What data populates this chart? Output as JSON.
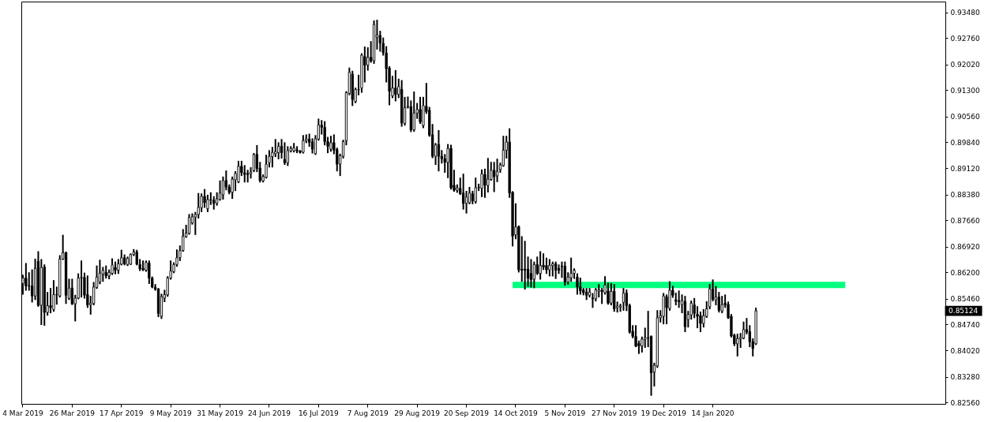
{
  "chart_data": {
    "type": "candlestick",
    "color": "#000000",
    "categories": [
      "4 Mar 2019",
      null,
      null,
      null,
      null,
      null,
      null,
      null,
      null,
      null,
      null,
      null,
      null,
      null,
      null,
      null,
      "26 Mar 2019",
      null,
      null,
      null,
      null,
      null,
      null,
      null,
      null,
      null,
      null,
      null,
      null,
      null,
      null,
      null,
      "17 Apr 2019",
      null,
      null,
      null,
      null,
      null,
      null,
      null,
      null,
      null,
      null,
      null,
      null,
      null,
      null,
      null,
      "9 May 2019",
      null,
      null,
      null,
      null,
      null,
      null,
      null,
      null,
      null,
      null,
      null,
      null,
      null,
      null,
      null,
      "31 May 2019",
      null,
      null,
      null,
      null,
      null,
      null,
      null,
      null,
      null,
      null,
      null,
      null,
      null,
      null,
      null,
      "24 Jun 2019",
      null,
      null,
      null,
      null,
      null,
      null,
      null,
      null,
      null,
      null,
      null,
      null,
      null,
      null,
      null,
      "16 Jul 2019",
      null,
      null,
      null,
      null,
      null,
      null,
      null,
      null,
      null,
      null,
      null,
      null,
      null,
      null,
      null,
      "7 Aug 2019",
      null,
      null,
      null,
      null,
      null,
      null,
      null,
      null,
      null,
      null,
      null,
      null,
      null,
      null,
      null,
      "29 Aug 2019",
      null,
      null,
      null,
      null,
      null,
      null,
      null,
      null,
      null,
      null,
      null,
      null,
      null,
      null,
      null,
      "20 Sep 2019",
      null,
      null,
      null,
      null,
      null,
      null,
      null,
      null,
      null,
      null,
      null,
      null,
      null,
      null,
      null,
      "14 Oct 2019",
      null,
      null,
      null,
      null,
      null,
      null,
      null,
      null,
      null,
      null,
      null,
      null,
      null,
      null,
      null,
      "5 Nov 2019",
      null,
      null,
      null,
      null,
      null,
      null,
      null,
      null,
      null,
      null,
      null,
      null,
      null,
      null,
      null,
      "27 Nov 2019",
      null,
      null,
      null,
      null,
      null,
      null,
      null,
      null,
      null,
      null,
      null,
      null,
      null,
      null,
      null,
      "19 Dec 2019",
      null,
      null,
      null,
      null,
      null,
      null,
      null,
      null,
      null,
      null,
      null,
      null,
      null,
      null,
      null,
      "14 Jan 2020",
      null,
      null,
      null,
      null,
      null,
      null,
      null,
      null,
      null,
      null,
      null,
      null,
      null,
      null,
      null,
      null,
      null,
      null,
      null,
      null,
      null,
      null,
      null,
      null,
      null,
      null,
      null,
      null,
      null,
      null,
      null,
      null,
      null,
      null,
      null,
      null,
      null,
      null,
      null,
      null,
      null,
      null,
      null,
      null,
      null,
      null,
      null,
      null,
      null,
      null,
      null,
      null,
      null,
      null,
      null,
      null,
      null,
      null,
      null,
      null,
      null,
      null,
      null,
      null,
      null,
      null,
      null,
      null,
      null,
      null,
      null,
      null,
      null,
      null,
      null
    ],
    "ohlc": [
      [
        0.8589,
        0.8611,
        0.856,
        0.8604
      ],
      [
        0.8604,
        0.8644,
        0.8571,
        0.8582
      ],
      [
        0.8583,
        0.8618,
        0.8571,
        0.8582
      ],
      [
        0.8582,
        0.8626,
        0.8538,
        0.8554
      ],
      [
        0.8554,
        0.8656,
        0.8545,
        0.8631
      ],
      [
        0.8651,
        0.8677,
        0.8526,
        0.8528
      ],
      [
        0.8528,
        0.8655,
        0.8475,
        0.8634
      ],
      [
        0.8635,
        0.864,
        0.8473,
        0.8508
      ],
      [
        0.8508,
        0.8563,
        0.8501,
        0.8527
      ],
      [
        0.8527,
        0.8574,
        0.8508,
        0.8521
      ],
      [
        0.8516,
        0.8596,
        0.8512,
        0.8558
      ],
      [
        0.8557,
        0.8578,
        0.8532,
        0.8558
      ],
      [
        0.8554,
        0.8666,
        0.8552,
        0.8657
      ],
      [
        0.8657,
        0.8723,
        0.8657,
        0.8675
      ],
      [
        0.8675,
        0.8676,
        0.8534,
        0.8556
      ],
      [
        0.8547,
        0.86,
        0.8545,
        0.8576
      ],
      [
        0.8576,
        0.86,
        0.8531,
        0.8532
      ],
      [
        0.8532,
        0.8555,
        0.8485,
        0.8548
      ],
      [
        0.8548,
        0.8615,
        0.8547,
        0.8604
      ],
      [
        0.8604,
        0.8651,
        0.8552,
        0.8606
      ],
      [
        0.8606,
        0.8617,
        0.8549,
        0.8556
      ],
      [
        0.8558,
        0.8609,
        0.8523,
        0.8529
      ],
      [
        0.8529,
        0.8552,
        0.8504,
        0.8534
      ],
      [
        0.8533,
        0.8591,
        0.853,
        0.8579
      ],
      [
        0.8578,
        0.8637,
        0.8576,
        0.8607
      ],
      [
        0.8593,
        0.8653,
        0.8589,
        0.8618
      ],
      [
        0.8615,
        0.8633,
        0.8596,
        0.8626
      ],
      [
        0.862,
        0.8637,
        0.8605,
        0.861
      ],
      [
        0.861,
        0.8626,
        0.8603,
        0.862
      ],
      [
        0.8617,
        0.8657,
        0.8615,
        0.8641
      ],
      [
        0.8634,
        0.8648,
        0.8617,
        0.8626
      ],
      [
        0.8626,
        0.8655,
        0.8618,
        0.8644
      ],
      [
        0.8643,
        0.8681,
        0.8642,
        0.8661
      ],
      [
        0.8661,
        0.8668,
        0.8642,
        0.8644
      ],
      [
        0.8642,
        0.8662,
        0.864,
        0.8659
      ],
      [
        0.8643,
        0.8671,
        0.8643,
        0.867
      ],
      [
        0.867,
        0.8683,
        0.8668,
        0.8677
      ],
      [
        0.8677,
        0.8681,
        0.8642,
        0.8643
      ],
      [
        0.8642,
        0.8655,
        0.8626,
        0.863
      ],
      [
        0.8631,
        0.8651,
        0.8626,
        0.8627
      ],
      [
        0.8626,
        0.8651,
        0.8624,
        0.8648
      ],
      [
        0.8646,
        0.8651,
        0.859,
        0.8604
      ],
      [
        0.8604,
        0.8606,
        0.8578,
        0.8579
      ],
      [
        0.8578,
        0.8585,
        0.8571,
        0.8573
      ],
      [
        0.8573,
        0.8574,
        0.8497,
        0.8505
      ],
      [
        0.8497,
        0.8558,
        0.8492,
        0.8552
      ],
      [
        0.8548,
        0.8569,
        0.8539,
        0.8558
      ],
      [
        0.8557,
        0.8607,
        0.8554,
        0.8604
      ],
      [
        0.8604,
        0.8651,
        0.8602,
        0.8624
      ],
      [
        0.8622,
        0.8646,
        0.862,
        0.8642
      ],
      [
        0.8642,
        0.8682,
        0.8638,
        0.8661
      ],
      [
        0.8661,
        0.8693,
        0.8654,
        0.8681
      ],
      [
        0.8681,
        0.8739,
        0.868,
        0.8721
      ],
      [
        0.872,
        0.8751,
        0.8719,
        0.873
      ],
      [
        0.8729,
        0.8781,
        0.8728,
        0.8774
      ],
      [
        0.8758,
        0.8783,
        0.8756,
        0.8776
      ],
      [
        0.8775,
        0.8787,
        0.8727,
        0.8782
      ],
      [
        0.8782,
        0.884,
        0.8773,
        0.8802
      ],
      [
        0.8801,
        0.8839,
        0.8791,
        0.8833
      ],
      [
        0.8833,
        0.8851,
        0.8803,
        0.8815
      ],
      [
        0.8798,
        0.8835,
        0.8791,
        0.8824
      ],
      [
        0.8822,
        0.8842,
        0.8811,
        0.8824
      ],
      [
        0.8822,
        0.8831,
        0.8798,
        0.8813
      ],
      [
        0.8813,
        0.8842,
        0.8809,
        0.8826
      ],
      [
        0.8824,
        0.8875,
        0.8823,
        0.8842
      ],
      [
        0.8837,
        0.8886,
        0.8826,
        0.8877
      ],
      [
        0.8877,
        0.8903,
        0.8852,
        0.8859
      ],
      [
        0.8859,
        0.8864,
        0.8841,
        0.8844
      ],
      [
        0.8844,
        0.8886,
        0.8828,
        0.8881
      ],
      [
        0.8879,
        0.8901,
        0.885,
        0.8897
      ],
      [
        0.8873,
        0.893,
        0.8872,
        0.8917
      ],
      [
        0.8917,
        0.893,
        0.8892,
        0.8899
      ],
      [
        0.8899,
        0.8918,
        0.8874,
        0.8894
      ],
      [
        0.8897,
        0.8905,
        0.8874,
        0.8894
      ],
      [
        0.8896,
        0.8912,
        0.8885,
        0.8901
      ],
      [
        0.8905,
        0.8952,
        0.8903,
        0.895
      ],
      [
        0.895,
        0.8974,
        0.8903,
        0.8911
      ],
      [
        0.8912,
        0.8927,
        0.8874,
        0.8877
      ],
      [
        0.8876,
        0.8892,
        0.8874,
        0.8888
      ],
      [
        0.8886,
        0.8947,
        0.8885,
        0.8923
      ],
      [
        0.8927,
        0.896,
        0.8916,
        0.8945
      ],
      [
        0.8944,
        0.8969,
        0.8916,
        0.8956
      ],
      [
        0.8952,
        0.8991,
        0.8945,
        0.8958
      ],
      [
        0.8955,
        0.8982,
        0.8939,
        0.8973
      ],
      [
        0.8973,
        0.8991,
        0.8941,
        0.8955
      ],
      [
        0.8936,
        0.8982,
        0.8923,
        0.8927
      ],
      [
        0.8927,
        0.8971,
        0.892,
        0.8961
      ],
      [
        0.896,
        0.8971,
        0.8958,
        0.8967
      ],
      [
        0.896,
        0.898,
        0.8958,
        0.8969
      ],
      [
        0.8963,
        0.8971,
        0.8956,
        0.896
      ],
      [
        0.896,
        0.896,
        0.8955,
        0.8956
      ],
      [
        0.8956,
        0.9002,
        0.8955,
        0.8989
      ],
      [
        0.8989,
        0.9004,
        0.8984,
        0.8994
      ],
      [
        0.8993,
        0.9006,
        0.8974,
        0.8984
      ],
      [
        0.8985,
        0.8993,
        0.8955,
        0.8965
      ],
      [
        0.8952,
        0.9002,
        0.8951,
        0.8994
      ],
      [
        0.8993,
        0.9048,
        0.8991,
        0.9033
      ],
      [
        0.9032,
        0.9044,
        0.9008,
        0.9026
      ],
      [
        0.9026,
        0.9041,
        0.8978,
        0.8986
      ],
      [
        0.8986,
        0.8997,
        0.8956,
        0.8973
      ],
      [
        0.8965,
        0.9,
        0.896,
        0.8983
      ],
      [
        0.8983,
        0.9004,
        0.8953,
        0.8962
      ],
      [
        0.8964,
        0.8967,
        0.8905,
        0.8923
      ],
      [
        0.8923,
        0.895,
        0.8892,
        0.8947
      ],
      [
        0.8945,
        0.8989,
        0.8941,
        0.8986
      ],
      [
        0.8989,
        0.9125,
        0.8978,
        0.9123
      ],
      [
        0.9121,
        0.9191,
        0.9118,
        0.918
      ],
      [
        0.9175,
        0.9182,
        0.9088,
        0.9104
      ],
      [
        0.9098,
        0.9135,
        0.9096,
        0.9132
      ],
      [
        0.9131,
        0.9171,
        0.9118,
        0.9132
      ],
      [
        0.9136,
        0.9231,
        0.9125,
        0.9228
      ],
      [
        0.9224,
        0.925,
        0.9154,
        0.92
      ],
      [
        0.92,
        0.9248,
        0.9187,
        0.9222
      ],
      [
        0.9222,
        0.9265,
        0.9209,
        0.9212
      ],
      [
        0.9212,
        0.9323,
        0.9206,
        0.9314
      ],
      [
        0.9278,
        0.9325,
        0.9246,
        0.9285
      ],
      [
        0.9283,
        0.9294,
        0.924,
        0.9262
      ],
      [
        0.9261,
        0.9275,
        0.9229,
        0.9235
      ],
      [
        0.9234,
        0.9251,
        0.9154,
        0.919
      ],
      [
        0.9192,
        0.9195,
        0.909,
        0.9127
      ],
      [
        0.9114,
        0.9168,
        0.911,
        0.9136
      ],
      [
        0.9136,
        0.9184,
        0.9101,
        0.9118
      ],
      [
        0.9118,
        0.916,
        0.911,
        0.914
      ],
      [
        0.9132,
        0.9156,
        0.903,
        0.9038
      ],
      [
        0.9037,
        0.9109,
        0.9033,
        0.9081
      ],
      [
        0.9083,
        0.911,
        0.9081,
        0.9084
      ],
      [
        0.9084,
        0.9099,
        0.9015,
        0.9019
      ],
      [
        0.9019,
        0.9124,
        0.9016,
        0.9066
      ],
      [
        0.9066,
        0.9092,
        0.9052,
        0.9076
      ],
      [
        0.9076,
        0.9109,
        0.9038,
        0.9041
      ],
      [
        0.9031,
        0.9109,
        0.9026,
        0.9087
      ],
      [
        0.9085,
        0.9148,
        0.9066,
        0.907
      ],
      [
        0.9074,
        0.9081,
        0.9002,
        0.9004
      ],
      [
        0.9005,
        0.9033,
        0.8942,
        0.8945
      ],
      [
        0.8945,
        0.898,
        0.8923,
        0.8977
      ],
      [
        0.8978,
        0.9016,
        0.8905,
        0.8945
      ],
      [
        0.8945,
        0.896,
        0.8927,
        0.8938
      ],
      [
        0.8938,
        0.8949,
        0.8901,
        0.8928
      ],
      [
        0.8928,
        0.8977,
        0.8886,
        0.8967
      ],
      [
        0.8967,
        0.8975,
        0.8854,
        0.8857
      ],
      [
        0.8864,
        0.8905,
        0.8848,
        0.885
      ],
      [
        0.885,
        0.8864,
        0.8845,
        0.8857
      ],
      [
        0.8855,
        0.8883,
        0.8839,
        0.884
      ],
      [
        0.8842,
        0.8894,
        0.8798,
        0.8813
      ],
      [
        0.8813,
        0.8846,
        0.8787,
        0.8831
      ],
      [
        0.8815,
        0.8857,
        0.8813,
        0.8842
      ],
      [
        0.884,
        0.8846,
        0.8813,
        0.882
      ],
      [
        0.8818,
        0.8883,
        0.8815,
        0.8857
      ],
      [
        0.8857,
        0.8866,
        0.885,
        0.8858
      ],
      [
        0.8855,
        0.8906,
        0.8833,
        0.8896
      ],
      [
        0.8894,
        0.8908,
        0.8831,
        0.8864
      ],
      [
        0.8863,
        0.8938,
        0.8846,
        0.8881
      ],
      [
        0.888,
        0.8927,
        0.8879,
        0.8906
      ],
      [
        0.8906,
        0.8927,
        0.8847,
        0.8888
      ],
      [
        0.889,
        0.8936,
        0.8875,
        0.8903
      ],
      [
        0.8908,
        0.8925,
        0.8901,
        0.8921
      ],
      [
        0.8919,
        0.9,
        0.8918,
        0.8962
      ],
      [
        0.8962,
        0.9,
        0.8941,
        0.8985
      ],
      [
        0.8985,
        0.9021,
        0.8831,
        0.8842
      ],
      [
        0.8844,
        0.8845,
        0.8695,
        0.8721
      ],
      [
        0.8725,
        0.8811,
        0.8715,
        0.8747
      ],
      [
        0.8748,
        0.8749,
        0.8622,
        0.8627
      ],
      [
        0.8629,
        0.8719,
        0.8596,
        0.8626
      ],
      [
        0.8629,
        0.8706,
        0.8574,
        0.8626
      ],
      [
        0.8629,
        0.8662,
        0.8582,
        0.8604
      ],
      [
        0.8617,
        0.8655,
        0.858,
        0.86
      ],
      [
        0.8601,
        0.8648,
        0.8578,
        0.8642
      ],
      [
        0.8642,
        0.8662,
        0.8615,
        0.8617
      ],
      [
        0.8617,
        0.8677,
        0.8602,
        0.8639
      ],
      [
        0.864,
        0.8671,
        0.8629,
        0.8635
      ],
      [
        0.8639,
        0.8659,
        0.8618,
        0.8627
      ],
      [
        0.8627,
        0.8655,
        0.8611,
        0.864
      ],
      [
        0.8639,
        0.8648,
        0.8611,
        0.8644
      ],
      [
        0.8644,
        0.8648,
        0.8604,
        0.8626
      ],
      [
        0.8631,
        0.864,
        0.8618,
        0.8626
      ],
      [
        0.8637,
        0.8648,
        0.8607,
        0.8636
      ],
      [
        0.8637,
        0.8648,
        0.8585,
        0.8593
      ],
      [
        0.8593,
        0.8618,
        0.8588,
        0.8607
      ],
      [
        0.8605,
        0.8659,
        0.8596,
        0.8617
      ],
      [
        0.8617,
        0.8629,
        0.8604,
        0.8626
      ],
      [
        0.8607,
        0.8615,
        0.856,
        0.8579
      ],
      [
        0.858,
        0.8603,
        0.856,
        0.8568
      ],
      [
        0.8571,
        0.8574,
        0.8558,
        0.8563
      ],
      [
        0.8565,
        0.8574,
        0.8545,
        0.8556
      ],
      [
        0.8556,
        0.8574,
        0.8552,
        0.8565
      ],
      [
        0.8548,
        0.856,
        0.8523,
        0.8546
      ],
      [
        0.8546,
        0.8574,
        0.8541,
        0.8571
      ],
      [
        0.8567,
        0.8585,
        0.8552,
        0.8571
      ],
      [
        0.857,
        0.8574,
        0.8534,
        0.8566
      ],
      [
        0.8563,
        0.8607,
        0.856,
        0.8585
      ],
      [
        0.8568,
        0.8589,
        0.8532,
        0.8534
      ],
      [
        0.8534,
        0.8588,
        0.853,
        0.8567
      ],
      [
        0.8567,
        0.8585,
        0.8512,
        0.8518
      ],
      [
        0.8521,
        0.8536,
        0.851,
        0.8526
      ],
      [
        0.8523,
        0.853,
        0.8512,
        0.8526
      ],
      [
        0.8536,
        0.8574,
        0.8515,
        0.8562
      ],
      [
        0.8562,
        0.857,
        0.8514,
        0.8527
      ],
      [
        0.8527,
        0.853,
        0.8451,
        0.8453
      ],
      [
        0.8455,
        0.847,
        0.8438,
        0.8441
      ],
      [
        0.8441,
        0.847,
        0.8413,
        0.8414
      ],
      [
        0.8421,
        0.8427,
        0.8394,
        0.8414
      ],
      [
        0.8414,
        0.8438,
        0.8398,
        0.8433
      ],
      [
        0.8432,
        0.8463,
        0.8411,
        0.8437
      ],
      [
        0.8437,
        0.851,
        0.8413,
        0.8436
      ],
      [
        0.8441,
        0.8441,
        0.8277,
        0.8339
      ],
      [
        0.8341,
        0.8365,
        0.8303,
        0.836
      ],
      [
        0.8358,
        0.8512,
        0.8355,
        0.8493
      ],
      [
        0.8493,
        0.8512,
        0.8482,
        0.8499
      ],
      [
        0.8497,
        0.856,
        0.8477,
        0.8554
      ],
      [
        0.8552,
        0.8556,
        0.8477,
        0.8521
      ],
      [
        0.8519,
        0.8593,
        0.8515,
        0.857
      ],
      [
        0.857,
        0.858,
        0.8551,
        0.8556
      ],
      [
        0.8543,
        0.8561,
        0.853,
        0.8539
      ],
      [
        0.8541,
        0.8567,
        0.8523,
        0.8538
      ],
      [
        0.853,
        0.8556,
        0.8508,
        0.8541
      ],
      [
        0.8539,
        0.8552,
        0.8455,
        0.8468
      ],
      [
        0.8488,
        0.851,
        0.8468,
        0.8502
      ],
      [
        0.8501,
        0.8539,
        0.849,
        0.8534
      ],
      [
        0.8529,
        0.8546,
        0.8494,
        0.8505
      ],
      [
        0.8503,
        0.8523,
        0.8466,
        0.8497
      ],
      [
        0.8499,
        0.8508,
        0.8455,
        0.8477
      ],
      [
        0.8477,
        0.8515,
        0.8468,
        0.8499
      ],
      [
        0.8497,
        0.8537,
        0.8495,
        0.8518
      ],
      [
        0.8524,
        0.8585,
        0.8519,
        0.8574
      ],
      [
        0.8574,
        0.8598,
        0.8541,
        0.8545
      ],
      [
        0.8543,
        0.858,
        0.853,
        0.8551
      ],
      [
        0.8551,
        0.8563,
        0.851,
        0.8514
      ],
      [
        0.8512,
        0.8552,
        0.8508,
        0.853
      ],
      [
        0.8534,
        0.8556,
        0.8523,
        0.8529
      ],
      [
        0.853,
        0.8536,
        0.8492,
        0.8493
      ],
      [
        0.8497,
        0.8501,
        0.844,
        0.8442
      ],
      [
        0.8444,
        0.8446,
        0.8416,
        0.842
      ],
      [
        0.842,
        0.8446,
        0.8387,
        0.8435
      ],
      [
        0.8434,
        0.8448,
        0.8411,
        0.8438
      ],
      [
        0.8436,
        0.848,
        0.8435,
        0.846
      ],
      [
        0.846,
        0.849,
        0.8449,
        0.8453
      ],
      [
        0.8454,
        0.847,
        0.8413,
        0.8426
      ],
      [
        0.8426,
        0.8433,
        0.8387,
        0.8407
      ],
      [
        0.842,
        0.8519,
        0.8419,
        0.85124
      ],
      null,
      null,
      null,
      null,
      null,
      null,
      null,
      null,
      null,
      null,
      null,
      null,
      null,
      null,
      null,
      null,
      null,
      null,
      null,
      null,
      null,
      null,
      null,
      null,
      null,
      null,
      null,
      null,
      null,
      null,
      null,
      null,
      null,
      null,
      null,
      null,
      null,
      null,
      null,
      null,
      null,
      null,
      null,
      null,
      null,
      null,
      null,
      null,
      null,
      null,
      null,
      null,
      null,
      null,
      null,
      null,
      null,
      null,
      null,
      null,
      null
    ],
    "series": [
      {
        "type": "line",
        "color": "#00ff7f",
        "values": [
          null,
          null,
          null,
          null,
          null,
          null,
          null,
          null,
          null,
          null,
          null,
          null,
          null,
          null,
          null,
          null,
          null,
          null,
          null,
          null,
          null,
          null,
          null,
          null,
          null,
          null,
          null,
          null,
          null,
          null,
          null,
          null,
          null,
          null,
          null,
          null,
          null,
          null,
          null,
          null,
          null,
          null,
          null,
          null,
          null,
          null,
          null,
          null,
          null,
          null,
          null,
          null,
          null,
          null,
          null,
          null,
          null,
          null,
          null,
          null,
          null,
          null,
          null,
          null,
          null,
          null,
          null,
          null,
          null,
          null,
          null,
          null,
          null,
          null,
          null,
          null,
          null,
          null,
          null,
          null,
          null,
          null,
          null,
          null,
          null,
          null,
          null,
          null,
          null,
          null,
          null,
          null,
          null,
          null,
          null,
          null,
          null,
          null,
          null,
          null,
          null,
          null,
          null,
          null,
          null,
          null,
          null,
          null,
          null,
          null,
          null,
          null,
          null,
          null,
          null,
          null,
          null,
          null,
          null,
          null,
          null,
          null,
          null,
          null,
          null,
          null,
          null,
          null,
          null,
          null,
          null,
          null,
          null,
          null,
          null,
          null,
          null,
          null,
          null,
          null,
          null,
          null,
          null,
          null,
          null,
          null,
          null,
          null,
          null,
          null,
          null,
          null,
          null,
          null,
          null,
          null,
          null,
          null,
          null,
          0.8585,
          0.8585,
          0.8585,
          0.8585,
          0.8585,
          0.8585,
          0.8585,
          0.8585,
          0.8585,
          0.8585,
          0.8585,
          0.8585,
          0.8585,
          0.8585,
          0.8585,
          0.8585,
          0.8585,
          0.8585,
          0.8585,
          0.8585,
          0.8585,
          0.8585,
          0.8585,
          0.8585,
          0.8585,
          0.8585,
          0.8585,
          0.8585,
          0.8585,
          0.8585,
          0.8585,
          0.8585,
          0.8585,
          0.8585,
          0.8585,
          0.8585,
          0.8585,
          0.8585,
          0.8585,
          0.8585,
          0.8585,
          0.8585,
          0.8585,
          0.8585,
          0.8585,
          0.8585,
          0.8585,
          0.8585,
          0.8585,
          0.8585,
          0.8585,
          0.8585,
          0.8585,
          0.8585,
          0.8585,
          0.8585,
          0.8585,
          0.8585,
          0.8585,
          0.8585,
          0.8585,
          0.8585,
          0.8585,
          0.8585,
          0.8585,
          0.8585,
          0.8585,
          0.8585,
          0.8585,
          0.8585,
          0.8585,
          0.8585,
          0.8585,
          0.8585,
          0.8585,
          0.8585,
          0.8585,
          0.8585,
          0.8585,
          0.8585,
          0.8585,
          0.8585,
          0.8585,
          0.8585,
          0.8585,
          0.8585,
          0.8585,
          0.8585,
          0.8585,
          0.8585,
          0.8585,
          0.8585,
          0.8585,
          0.8585,
          0.8585,
          0.8585,
          0.8585,
          0.8585,
          0.8585,
          0.8585,
          0.8585,
          0.8585,
          0.8585,
          0.8585,
          0.8585,
          0.8585,
          0.8585,
          0.8585,
          0.8585,
          null,
          null,
          null,
          null,
          null,
          null,
          null,
          null,
          null,
          null,
          null,
          null,
          null,
          null,
          null,
          null,
          null,
          null,
          null,
          null,
          null,
          null,
          null,
          null,
          null,
          null,
          null,
          null,
          null,
          null,
          null,
          null
        ]
      }
    ],
    "annotations": [
      "0.85124"
    ],
    "ylim": [
      0.8252,
      0.9378
    ],
    "yticks": [
      {
        "value": 0.9348,
        "label": "0.93480"
      },
      {
        "value": 0.9276,
        "label": "0.92760"
      },
      {
        "value": 0.9202,
        "label": "0.92020"
      },
      {
        "value": 0.913,
        "label": "0.91300"
      },
      {
        "value": 0.9056,
        "label": "0.90560"
      },
      {
        "value": 0.8984,
        "label": "0.89840"
      },
      {
        "value": 0.8912,
        "label": "0.89120"
      },
      {
        "value": 0.8838,
        "label": "0.88380"
      },
      {
        "value": 0.8766,
        "label": "0.87660"
      },
      {
        "value": 0.8692,
        "label": "0.86920"
      },
      {
        "value": 0.862,
        "label": "0.86200"
      },
      {
        "value": 0.8546,
        "label": "0.85460"
      },
      {
        "value": 0.8474,
        "label": "0.84740"
      },
      {
        "value": 0.8402,
        "label": "0.84020"
      },
      {
        "value": 0.8328,
        "label": "0.83280"
      },
      {
        "value": 0.8256,
        "label": "0.82560"
      }
    ],
    "grid": false
  }
}
